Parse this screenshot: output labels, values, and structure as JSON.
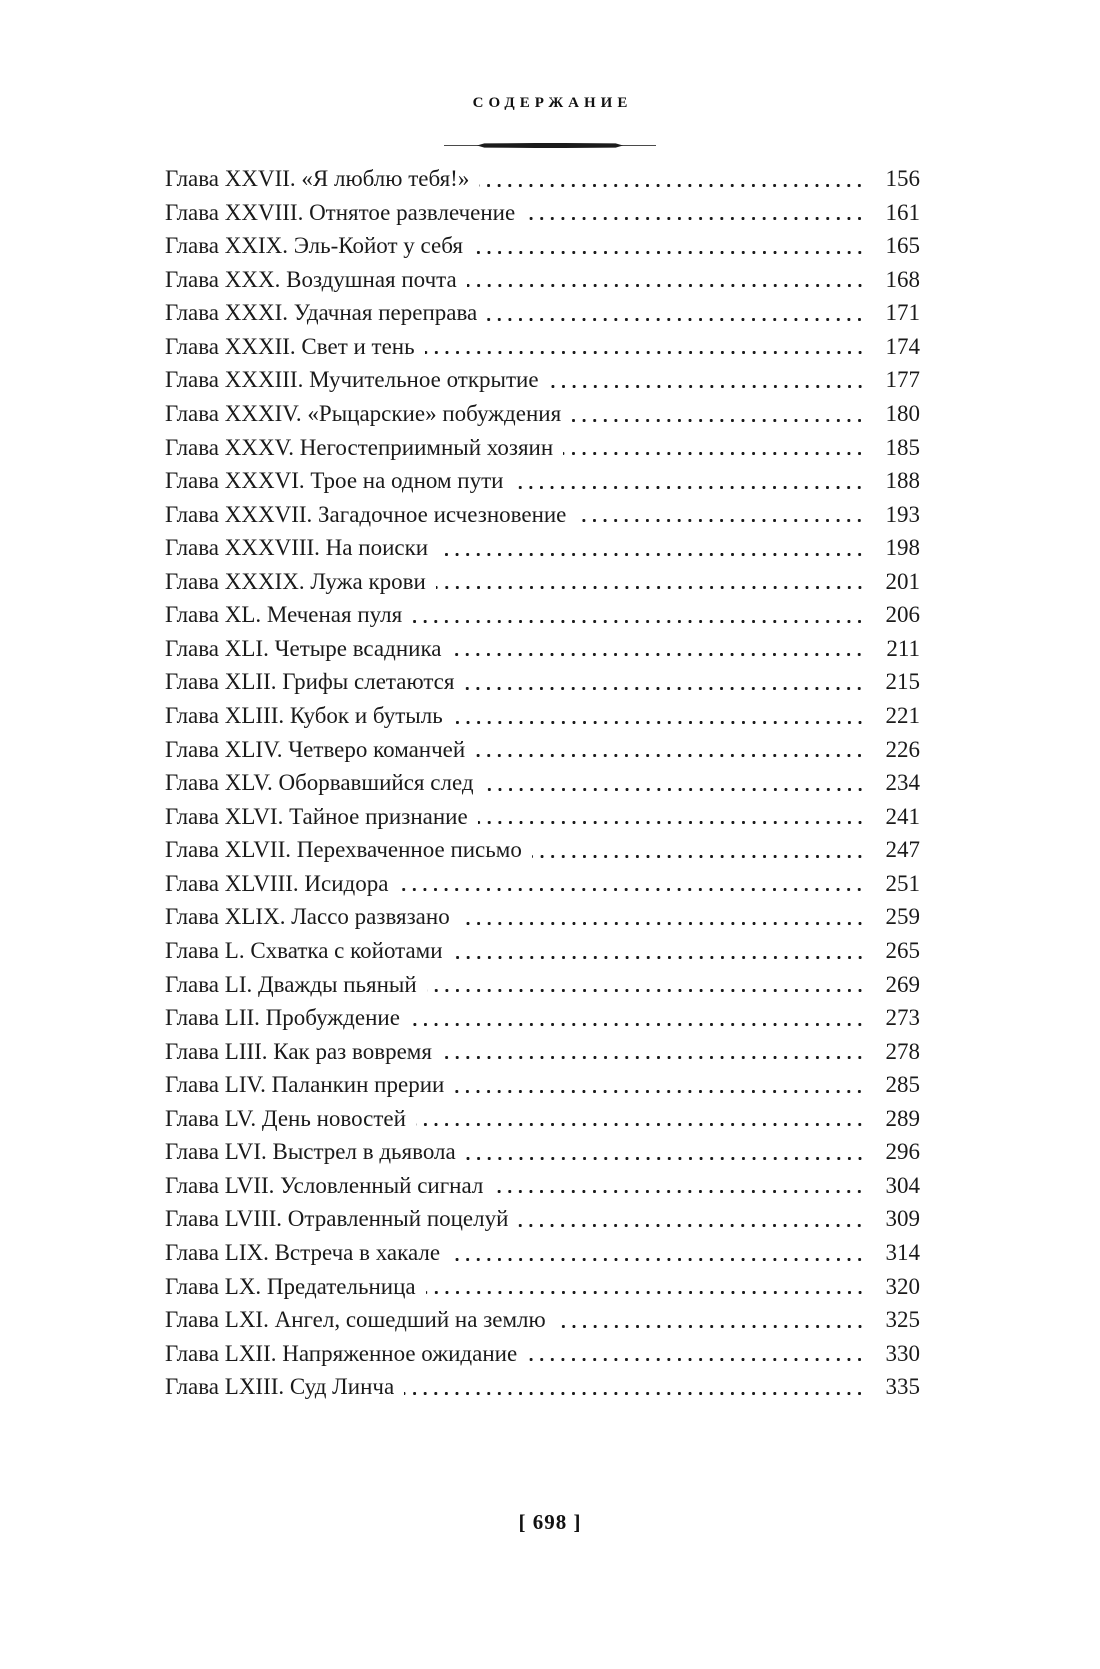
{
  "header": {
    "title": "СОДЕРЖАНИЕ"
  },
  "toc": {
    "entries": [
      {
        "title": "Глава XXVII. «Я люблю тебя!»",
        "page": "156"
      },
      {
        "title": "Глава XXVIII. Отнятое развлечение",
        "page": "161"
      },
      {
        "title": "Глава XXIX. Эль-Койот у себя",
        "page": "165"
      },
      {
        "title": "Глава XXX. Воздушная почта",
        "page": "168"
      },
      {
        "title": "Глава XXXI. Удачная переправа",
        "page": "171"
      },
      {
        "title": "Глава XXXII. Свет и тень",
        "page": "174"
      },
      {
        "title": "Глава XXXIII. Мучительное открытие",
        "page": "177"
      },
      {
        "title": "Глава XXXIV. «Рыцарские» побуждения",
        "page": "180"
      },
      {
        "title": "Глава XXXV. Негостеприимный хозяин",
        "page": "185"
      },
      {
        "title": "Глава XXXVI. Трое на одном пути",
        "page": "188"
      },
      {
        "title": "Глава XXXVII. Загадочное исчезновение",
        "page": "193"
      },
      {
        "title": "Глава XXXVIII. На поиски",
        "page": "198"
      },
      {
        "title": "Глава XXXIX. Лужа крови",
        "page": "201"
      },
      {
        "title": "Глава XL. Меченая пуля",
        "page": "206"
      },
      {
        "title": "Глава XLI. Четыре всадника",
        "page": "211"
      },
      {
        "title": "Глава XLII. Грифы слетаются",
        "page": "215"
      },
      {
        "title": "Глава XLIII. Кубок и бутыль",
        "page": "221"
      },
      {
        "title": "Глава XLIV. Четверо команчей",
        "page": "226"
      },
      {
        "title": "Глава XLV. Оборвавшийся след",
        "page": "234"
      },
      {
        "title": "Глава XLVI. Тайное признание",
        "page": "241"
      },
      {
        "title": "Глава XLVII. Перехваченное письмо",
        "page": "247"
      },
      {
        "title": "Глава XLVIII. Исидора",
        "page": "251"
      },
      {
        "title": "Глава XLIX. Лассо развязано",
        "page": "259"
      },
      {
        "title": "Глава L. Схватка с койотами",
        "page": "265"
      },
      {
        "title": "Глава LI. Дважды пьяный",
        "page": "269"
      },
      {
        "title": "Глава LII. Пробуждение",
        "page": "273"
      },
      {
        "title": "Глава LIII. Как раз вовремя",
        "page": "278"
      },
      {
        "title": "Глава LIV. Паланкин прерии",
        "page": "285"
      },
      {
        "title": "Глава LV. День новостей",
        "page": "289"
      },
      {
        "title": "Глава LVI. Выстрел в дьявола",
        "page": "296"
      },
      {
        "title": "Глава LVII. Условленный сигнал",
        "page": "304"
      },
      {
        "title": "Глава LVIII. Отравленный поцелуй",
        "page": "309"
      },
      {
        "title": "Глава LIX. Встреча в хакале",
        "page": "314"
      },
      {
        "title": "Глава LX. Предательница",
        "page": "320"
      },
      {
        "title": "Глава LXI. Ангел, сошедший на землю",
        "page": "325"
      },
      {
        "title": "Глава LXII. Напряженное ожидание",
        "page": "330"
      },
      {
        "title": "Глава LXIII. Суд Линча",
        "page": "335"
      }
    ]
  },
  "footer": {
    "page_label": "[ 698 ]"
  },
  "colors": {
    "text": "#1a1a1a",
    "background": "#ffffff"
  }
}
